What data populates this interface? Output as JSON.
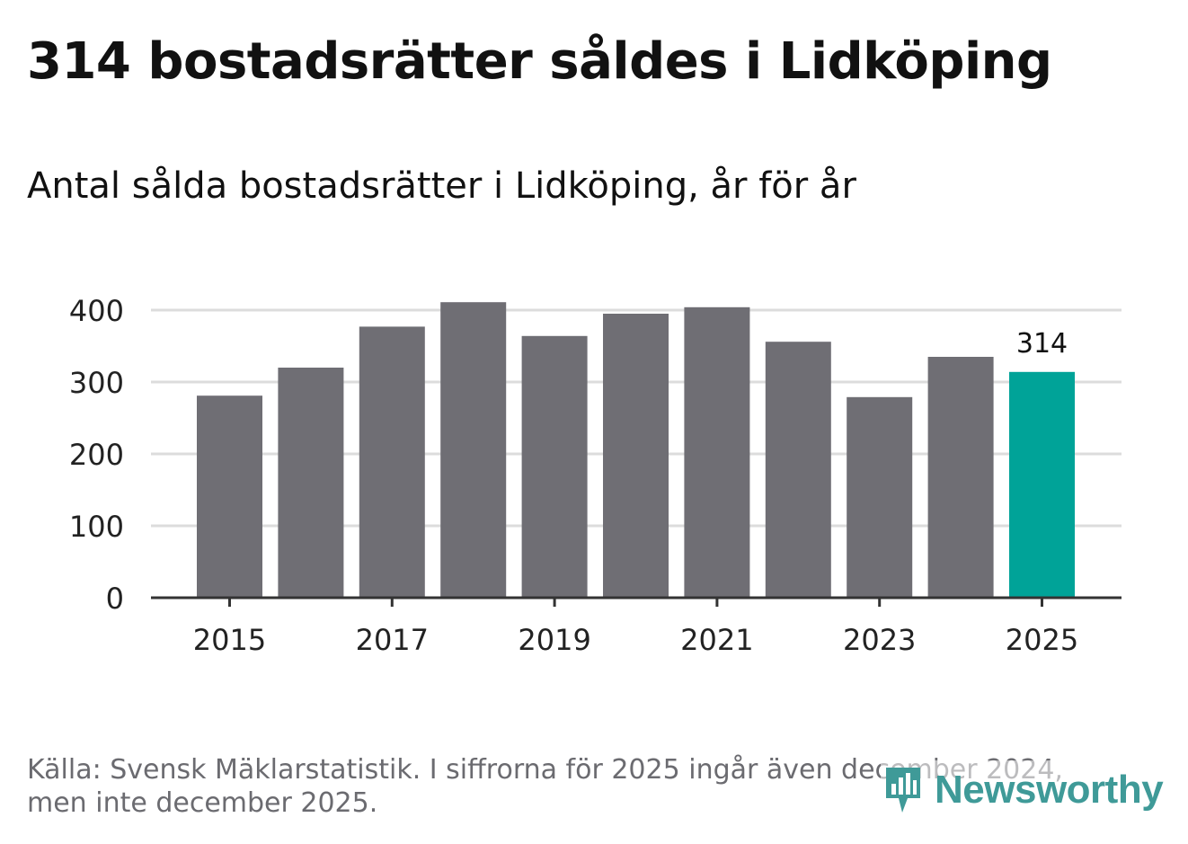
{
  "header": {
    "title": "314 bostadsrätter såldes i Lidköping",
    "subtitle": "Antal sålda bostadsrätter i Lidköping, år för år"
  },
  "footer": {
    "source_line1": "Källa: Svensk Mäklarstatistik. I siffrorna för 2025 ingår även december 2024,",
    "source_line2": "men inte december 2025."
  },
  "logo": {
    "text": "Newsworthy",
    "icon": "bar-chart-pin-icon"
  },
  "colors": {
    "bar": "#6f6e74",
    "highlight": "#00a398",
    "grid": "#dcdcdc",
    "axis": "#333333",
    "logo": "#3f9a98"
  },
  "chart_data": {
    "type": "bar",
    "title": "314 bostadsrätter såldes i Lidköping",
    "subtitle": "Antal sålda bostadsrätter i Lidköping, år för år",
    "xlabel": "",
    "ylabel": "",
    "categories": [
      "2015",
      "2016",
      "2017",
      "2018",
      "2019",
      "2020",
      "2021",
      "2022",
      "2023",
      "2024",
      "2025"
    ],
    "values": [
      281,
      320,
      377,
      411,
      364,
      395,
      404,
      356,
      279,
      335,
      314
    ],
    "highlight_index": 10,
    "data_labels": [
      {
        "index": 10,
        "text": "314"
      }
    ],
    "x_tick_labels": [
      "2015",
      "2017",
      "2019",
      "2021",
      "2023",
      "2025"
    ],
    "y_ticks": [
      0,
      100,
      200,
      300,
      400
    ],
    "ylim": [
      0,
      420
    ],
    "grid": true,
    "legend": "none"
  }
}
